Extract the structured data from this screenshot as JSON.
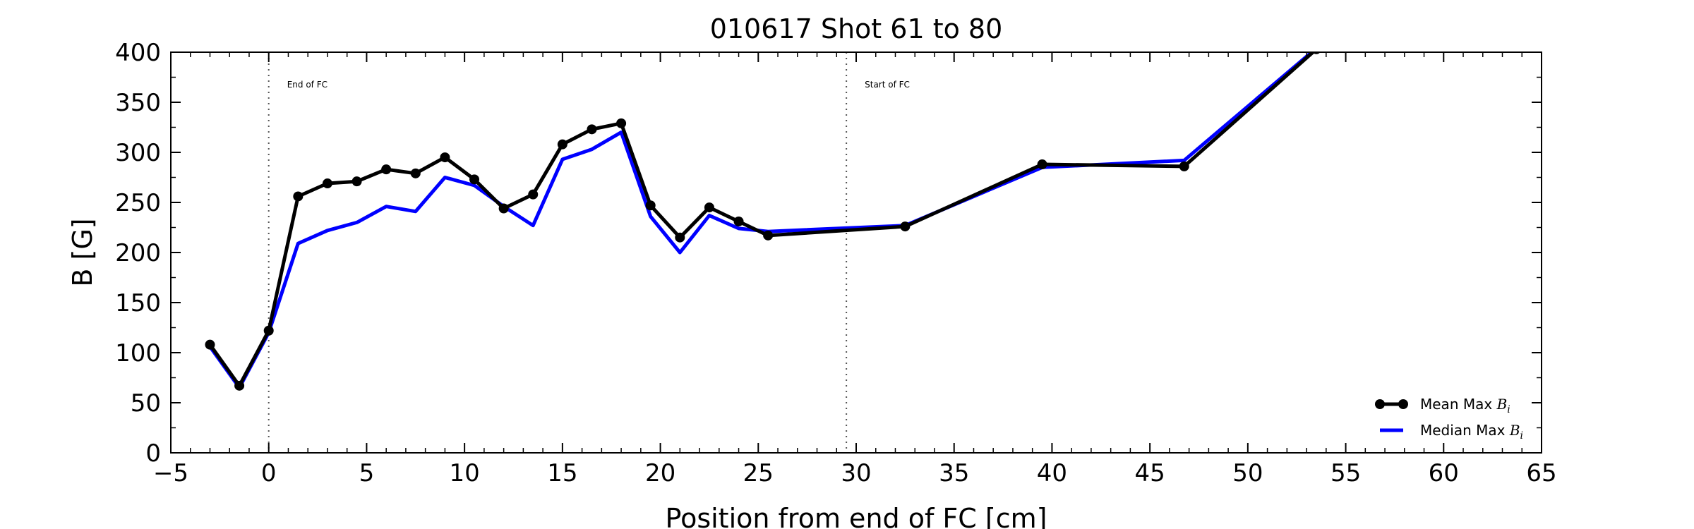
{
  "chart_data": {
    "type": "line",
    "title": "010617 Shot 61 to 80",
    "xlabel": "Position from end of FC [cm]",
    "ylabel": "B [G]",
    "xlim": [
      -5,
      65
    ],
    "ylim": [
      0,
      400
    ],
    "xticks": [
      -5,
      0,
      5,
      10,
      15,
      20,
      25,
      30,
      35,
      40,
      45,
      50,
      55,
      60,
      65
    ],
    "yticks": [
      0,
      50,
      100,
      150,
      200,
      250,
      300,
      350,
      400
    ],
    "xtick_labels": [
      "−5",
      "0",
      "5",
      "10",
      "15",
      "20",
      "25",
      "30",
      "35",
      "40",
      "45",
      "50",
      "55",
      "60",
      "65"
    ],
    "ytick_labels": [
      "0",
      "50",
      "100",
      "150",
      "200",
      "250",
      "300",
      "350",
      "400"
    ],
    "grid": false,
    "legend_position": "lower-right",
    "vlines": [
      {
        "x": 0,
        "label": "End of FC"
      },
      {
        "x": 29.5,
        "label": "Start of FC"
      }
    ],
    "series": [
      {
        "name": "Mean Max ",
        "name_math": "B",
        "name_sub": "i",
        "color": "#000000",
        "marker": "circle",
        "x": [
          -3,
          -1.5,
          0,
          1.5,
          3,
          4.5,
          6,
          7.5,
          9,
          10.5,
          12,
          13.5,
          15,
          16.5,
          18,
          19.5,
          21,
          22.5,
          24,
          25.5,
          32.5,
          39.5,
          46.75,
          53.5
        ],
        "y": [
          108,
          67,
          122,
          256,
          269,
          271,
          283,
          279,
          295,
          273,
          244,
          258,
          308,
          323,
          329,
          247,
          215,
          245,
          231,
          217,
          226,
          288,
          286,
          403
        ]
      },
      {
        "name": "Median Max ",
        "name_math": "B",
        "name_sub": "i",
        "color": "#0000ff",
        "marker": "none",
        "x": [
          -3,
          -1.5,
          0,
          1.5,
          3,
          4.5,
          6,
          7.5,
          9,
          10.5,
          12,
          13.5,
          15,
          16.5,
          18,
          19.5,
          21,
          22.5,
          24,
          25.5,
          32.5,
          39.5,
          46.75,
          53.5
        ],
        "y": [
          106,
          65,
          120,
          209,
          222,
          230,
          246,
          241,
          275,
          267,
          246,
          227,
          293,
          303,
          320,
          236,
          200,
          237,
          224,
          221,
          227,
          285,
          292,
          404
        ]
      }
    ]
  }
}
